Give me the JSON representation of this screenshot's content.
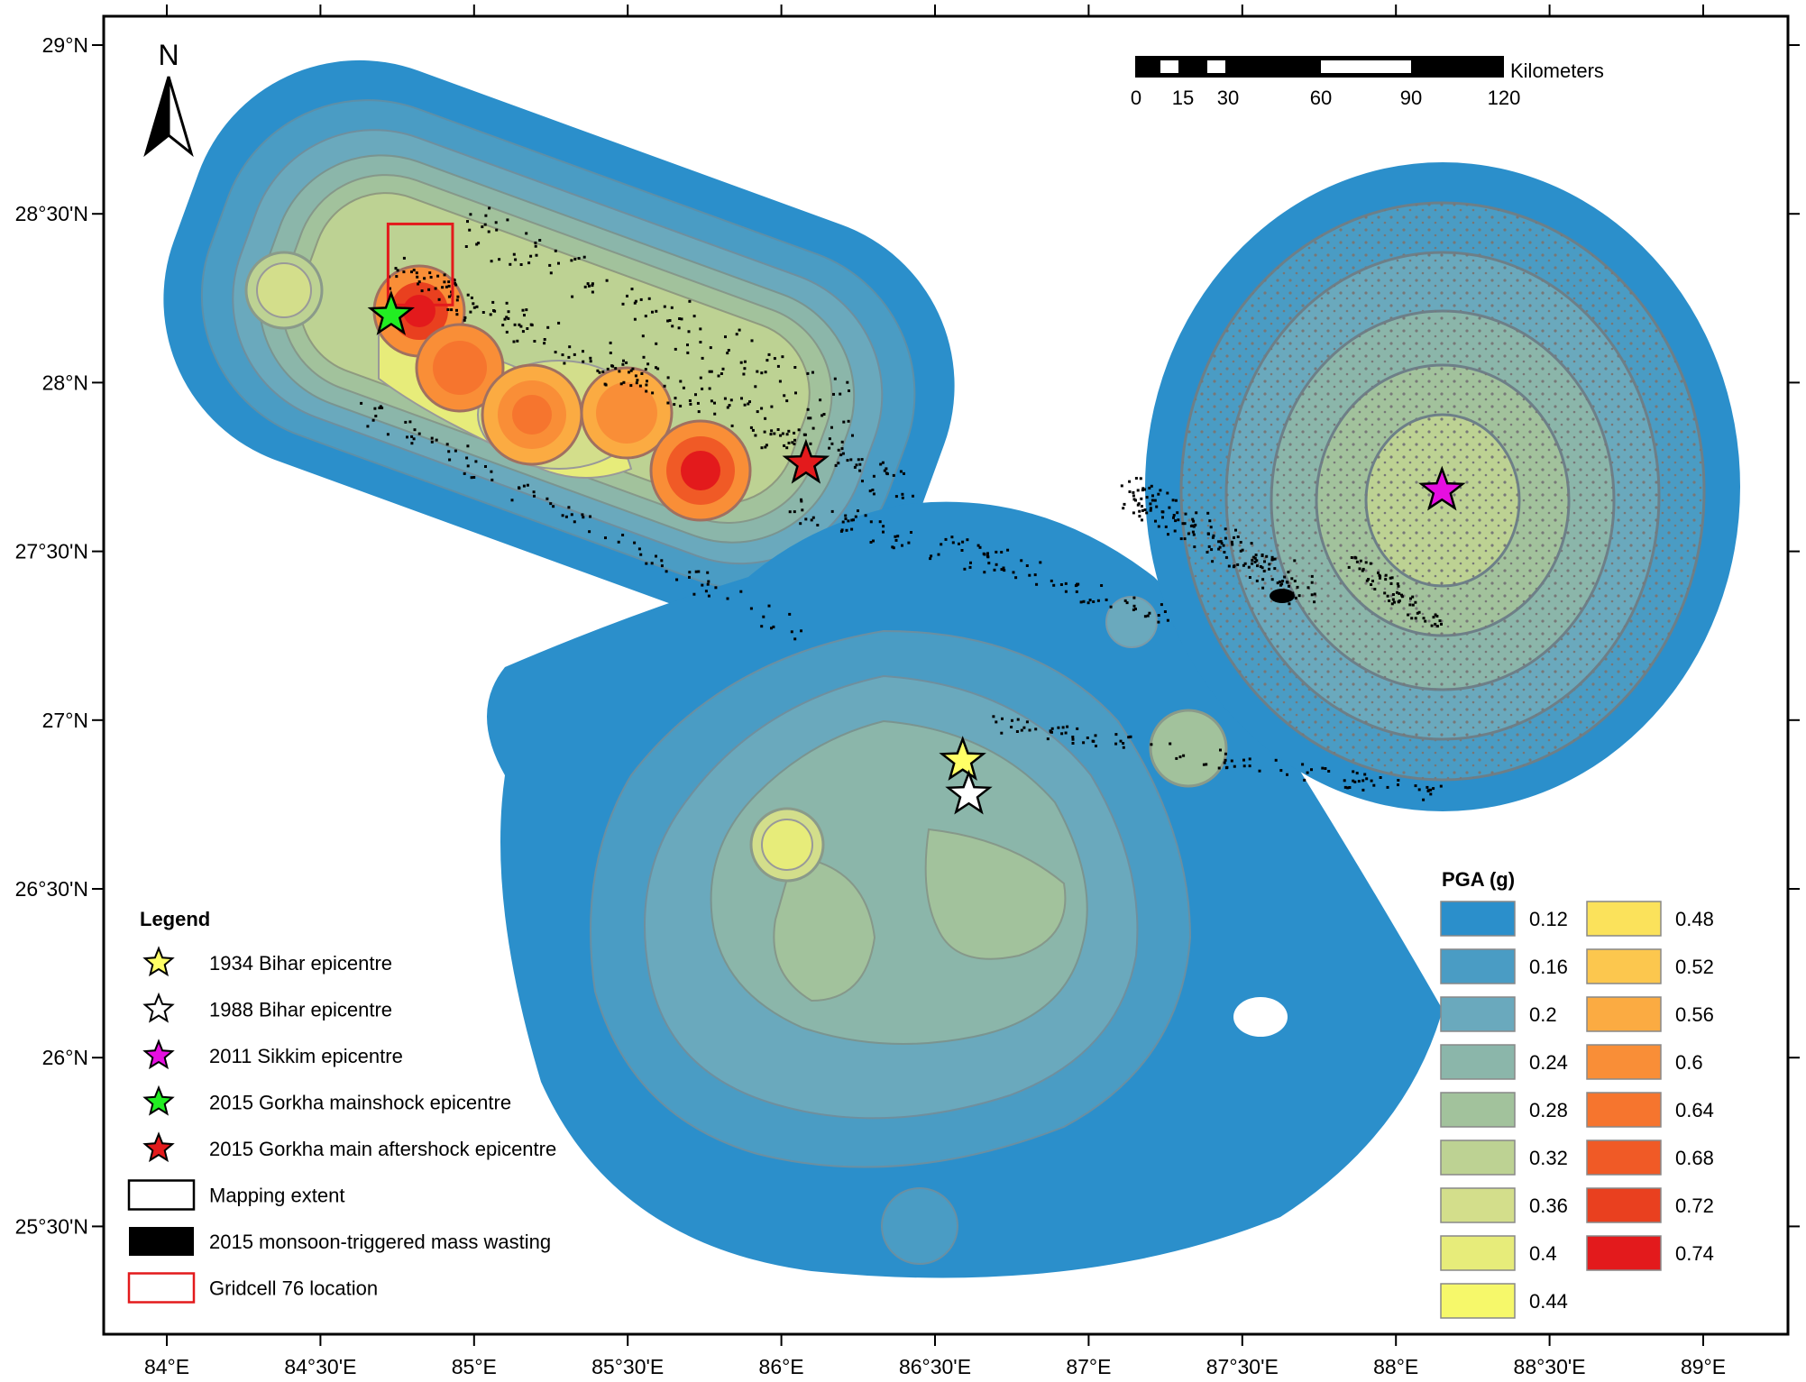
{
  "north_arrow": {
    "label": "N"
  },
  "scale_bar": {
    "unit": "Kilometers",
    "tick_values": [
      "0",
      "15",
      "30",
      "60",
      "90",
      "120"
    ]
  },
  "axes": {
    "x_ticks": [
      "84°E",
      "84°30'E",
      "85°E",
      "85°30'E",
      "86°E",
      "86°30'E",
      "87°E",
      "87°30'E",
      "88°E",
      "88°30'E",
      "89°E"
    ],
    "y_ticks": [
      "29°N",
      "28°30'N",
      "28°N",
      "27°30'N",
      "27°N",
      "26°30'N",
      "26°N",
      "25°30'N"
    ]
  },
  "legend": {
    "title": "Legend",
    "items": [
      {
        "label": "1934 Bihar epicentre",
        "symbol": "star",
        "color": "#ffff66"
      },
      {
        "label": "1988 Bihar epicentre",
        "symbol": "star",
        "color": "#ffffff"
      },
      {
        "label": "2011 Sikkim epicentre",
        "symbol": "star",
        "color": "#e60fe0"
      },
      {
        "label": "2015 Gorkha mainshock epicentre",
        "symbol": "star",
        "color": "#22ee22"
      },
      {
        "label": "2015 Gorkha main aftershock epicentre",
        "symbol": "star",
        "color": "#e31a1c"
      },
      {
        "label": "Mapping extent",
        "symbol": "box-outline",
        "color": "#000000"
      },
      {
        "label": "2015 monsoon-triggered mass wasting",
        "symbol": "box-fill",
        "color": "#000000"
      },
      {
        "label": "Gridcell 76 location",
        "symbol": "box-outline",
        "color": "#e31a1c"
      }
    ]
  },
  "pga_legend": {
    "title": "PGA (g)",
    "classes": [
      {
        "value": "0.12",
        "color": "#2b8fcb"
      },
      {
        "value": "0.16",
        "color": "#4a9cc4"
      },
      {
        "value": "0.2",
        "color": "#6aa9bd"
      },
      {
        "value": "0.24",
        "color": "#8bb6aa"
      },
      {
        "value": "0.28",
        "color": "#a2c29c"
      },
      {
        "value": "0.32",
        "color": "#bdd293"
      },
      {
        "value": "0.36",
        "color": "#d3de8b"
      },
      {
        "value": "0.4",
        "color": "#e7ec7a"
      },
      {
        "value": "0.44",
        "color": "#f6f86a"
      },
      {
        "value": "0.48",
        "color": "#fbe25b"
      },
      {
        "value": "0.52",
        "color": "#fcc74e"
      },
      {
        "value": "0.56",
        "color": "#fbab42"
      },
      {
        "value": "0.6",
        "color": "#f98e37"
      },
      {
        "value": "0.64",
        "color": "#f6752e"
      },
      {
        "value": "0.68",
        "color": "#f05a26"
      },
      {
        "value": "0.72",
        "color": "#e9401f"
      },
      {
        "value": "0.74",
        "color": "#e31a1c"
      }
    ]
  },
  "epicentres": [
    {
      "name": "1934 Bihar",
      "lon": 86.59,
      "lat": 26.88,
      "color": "#ffff66"
    },
    {
      "name": "1988 Bihar",
      "lon": 86.61,
      "lat": 26.78,
      "color": "#ffffff"
    },
    {
      "name": "2011 Sikkim",
      "lon": 88.15,
      "lat": 27.68,
      "color": "#e60fe0"
    },
    {
      "name": "2015 Gorkha mainshock",
      "lon": 84.73,
      "lat": 28.2,
      "color": "#22ee22"
    },
    {
      "name": "2015 Gorkha main aftershock",
      "lon": 86.08,
      "lat": 27.76,
      "color": "#e31a1c"
    }
  ],
  "gridcell_76": {
    "lon_min": 84.72,
    "lon_max": 84.93,
    "lat_min": 28.23,
    "lat_max": 28.47
  }
}
